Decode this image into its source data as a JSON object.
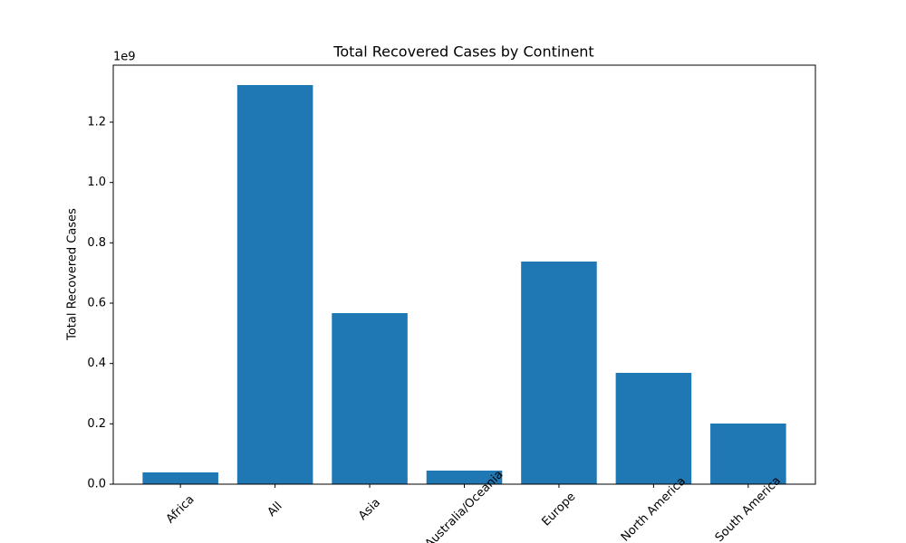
{
  "chart_data": {
    "type": "bar",
    "title": "Total Recovered Cases by Continent",
    "y_label": "Total Recovered Cases",
    "y_offset_label": "1e9",
    "categories": [
      "Africa",
      "All",
      "Asia",
      "Australia/Oceania",
      "Europe",
      "North America",
      "South America"
    ],
    "values": [
      39000000,
      1323000000,
      567000000,
      45000000,
      738000000,
      369000000,
      201000000
    ],
    "color": "#1f77b4",
    "ylim": [
      0,
      1389000000
    ],
    "yticks": [
      {
        "value": 0,
        "label": "0.0"
      },
      {
        "value": 200000000,
        "label": "0.2"
      },
      {
        "value": 400000000,
        "label": "0.4"
      },
      {
        "value": 600000000,
        "label": "0.6"
      },
      {
        "value": 800000000,
        "label": "0.8"
      },
      {
        "value": 1000000000,
        "label": "1.0"
      },
      {
        "value": 1200000000,
        "label": "1.2"
      }
    ],
    "grid": false
  }
}
